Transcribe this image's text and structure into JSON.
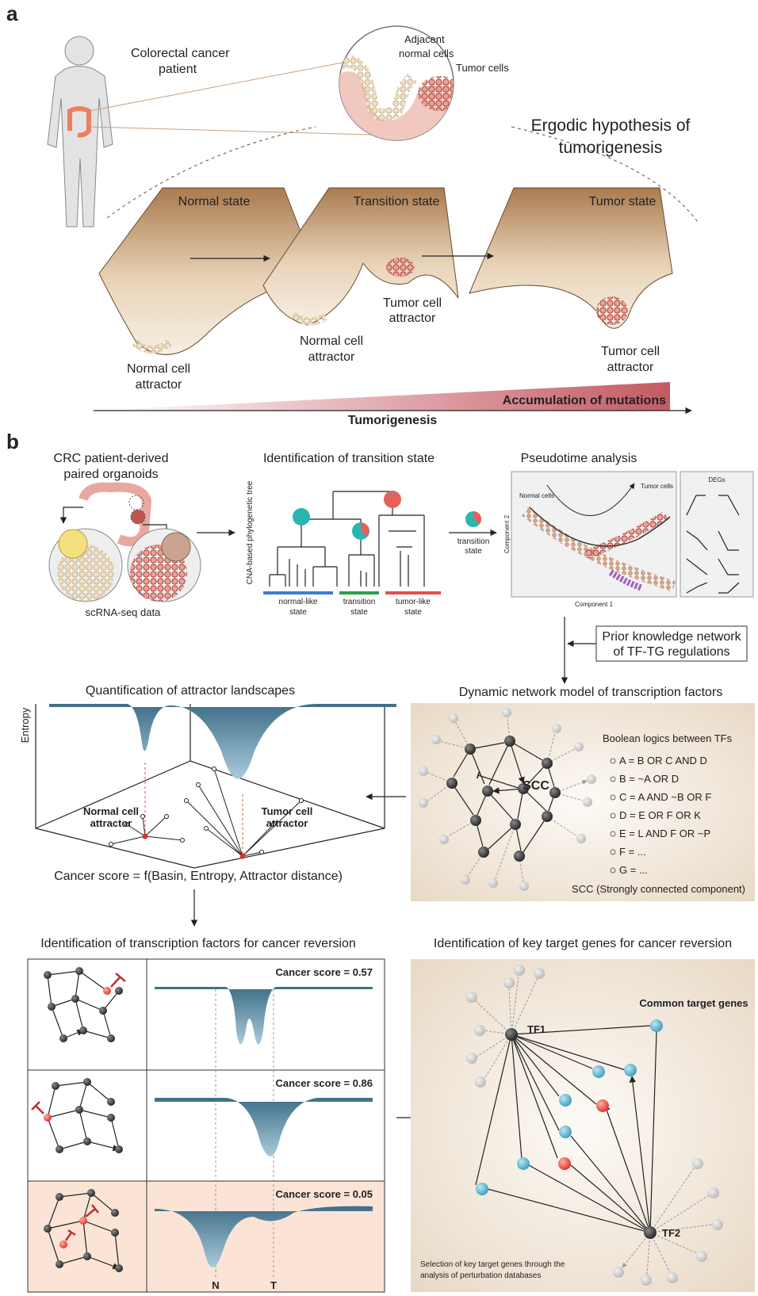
{
  "panel_a": {
    "label": "a",
    "patient": [
      "Colorectal cancer",
      "patient"
    ],
    "zoom_normal": [
      "Adjacent",
      "normal cells"
    ],
    "zoom_tumor": "Tumor cells",
    "hypothesis": [
      "Ergodic hypothesis of",
      "tumorigenesis"
    ],
    "states": [
      "Normal state",
      "Transition state",
      "Tumor state"
    ],
    "attractors": [
      [
        "Normal cell",
        "attractor"
      ],
      [
        "Normal cell",
        "attractor"
      ],
      [
        "Tumor cell",
        "attractor"
      ],
      [
        "Tumor cell",
        "attractor"
      ]
    ],
    "mutations": "Accumulation of mutations",
    "axis": "Tumorigenesis"
  },
  "panel_b": {
    "label": "b",
    "organoids": {
      "title": [
        "CRC patient-derived",
        "paired organoids"
      ],
      "caption": "scRNA-seq data"
    },
    "transition": {
      "title": "Identification of transition state",
      "axis": "CNA-based phylogenetic tree",
      "groups": [
        [
          "normal-like",
          "state"
        ],
        [
          "transition",
          "state"
        ],
        [
          "tumor-like",
          "state"
        ]
      ],
      "pie_label": [
        "transition",
        "state"
      ]
    },
    "pseudotime": {
      "title": "Pseudotime analysis",
      "start": "Normal cells",
      "end": "Tumor cells",
      "y_axis": "Component 2",
      "x_axis": "Component 1",
      "degs": "DEGs"
    },
    "prior": [
      "Prior knowledge network",
      "of TF-TG regulations"
    ],
    "network": {
      "title": "Dynamic network model of transcription factors",
      "boolean": "Boolean logics between TFs",
      "rules": [
        "A = B OR C AND D",
        "B = ~A OR D",
        "C = A AND ~B OR F",
        "D = E OR F OR K",
        "E = L AND F OR ~P",
        "F = ...",
        "G = ..."
      ],
      "scc": "SCC",
      "scc_note": "SCC (Strongly connected component)"
    },
    "landscape": {
      "title": "Quantification of attractor landscapes",
      "z_axis": "Entropy",
      "normal": [
        "Normal cell",
        "attractor"
      ],
      "tumor": [
        "Tumor cell",
        "attractor"
      ],
      "score": "Cancer score = f(Basin, Entropy, Attractor distance)"
    },
    "reversion": {
      "title": "Identification of transcription factors for cancer reversion",
      "scores": [
        "Cancer score = 0.57",
        "Cancer score = 0.86",
        "Cancer score = 0.05"
      ],
      "n": "N",
      "t": "T"
    },
    "targets": {
      "title": "Identification of key target genes for cancer reversion",
      "common": "Common target genes",
      "tf1": "TF1",
      "tf2": "TF2",
      "note": [
        "Selection of key target genes through the",
        "analysis of perturbation databases"
      ]
    }
  }
}
